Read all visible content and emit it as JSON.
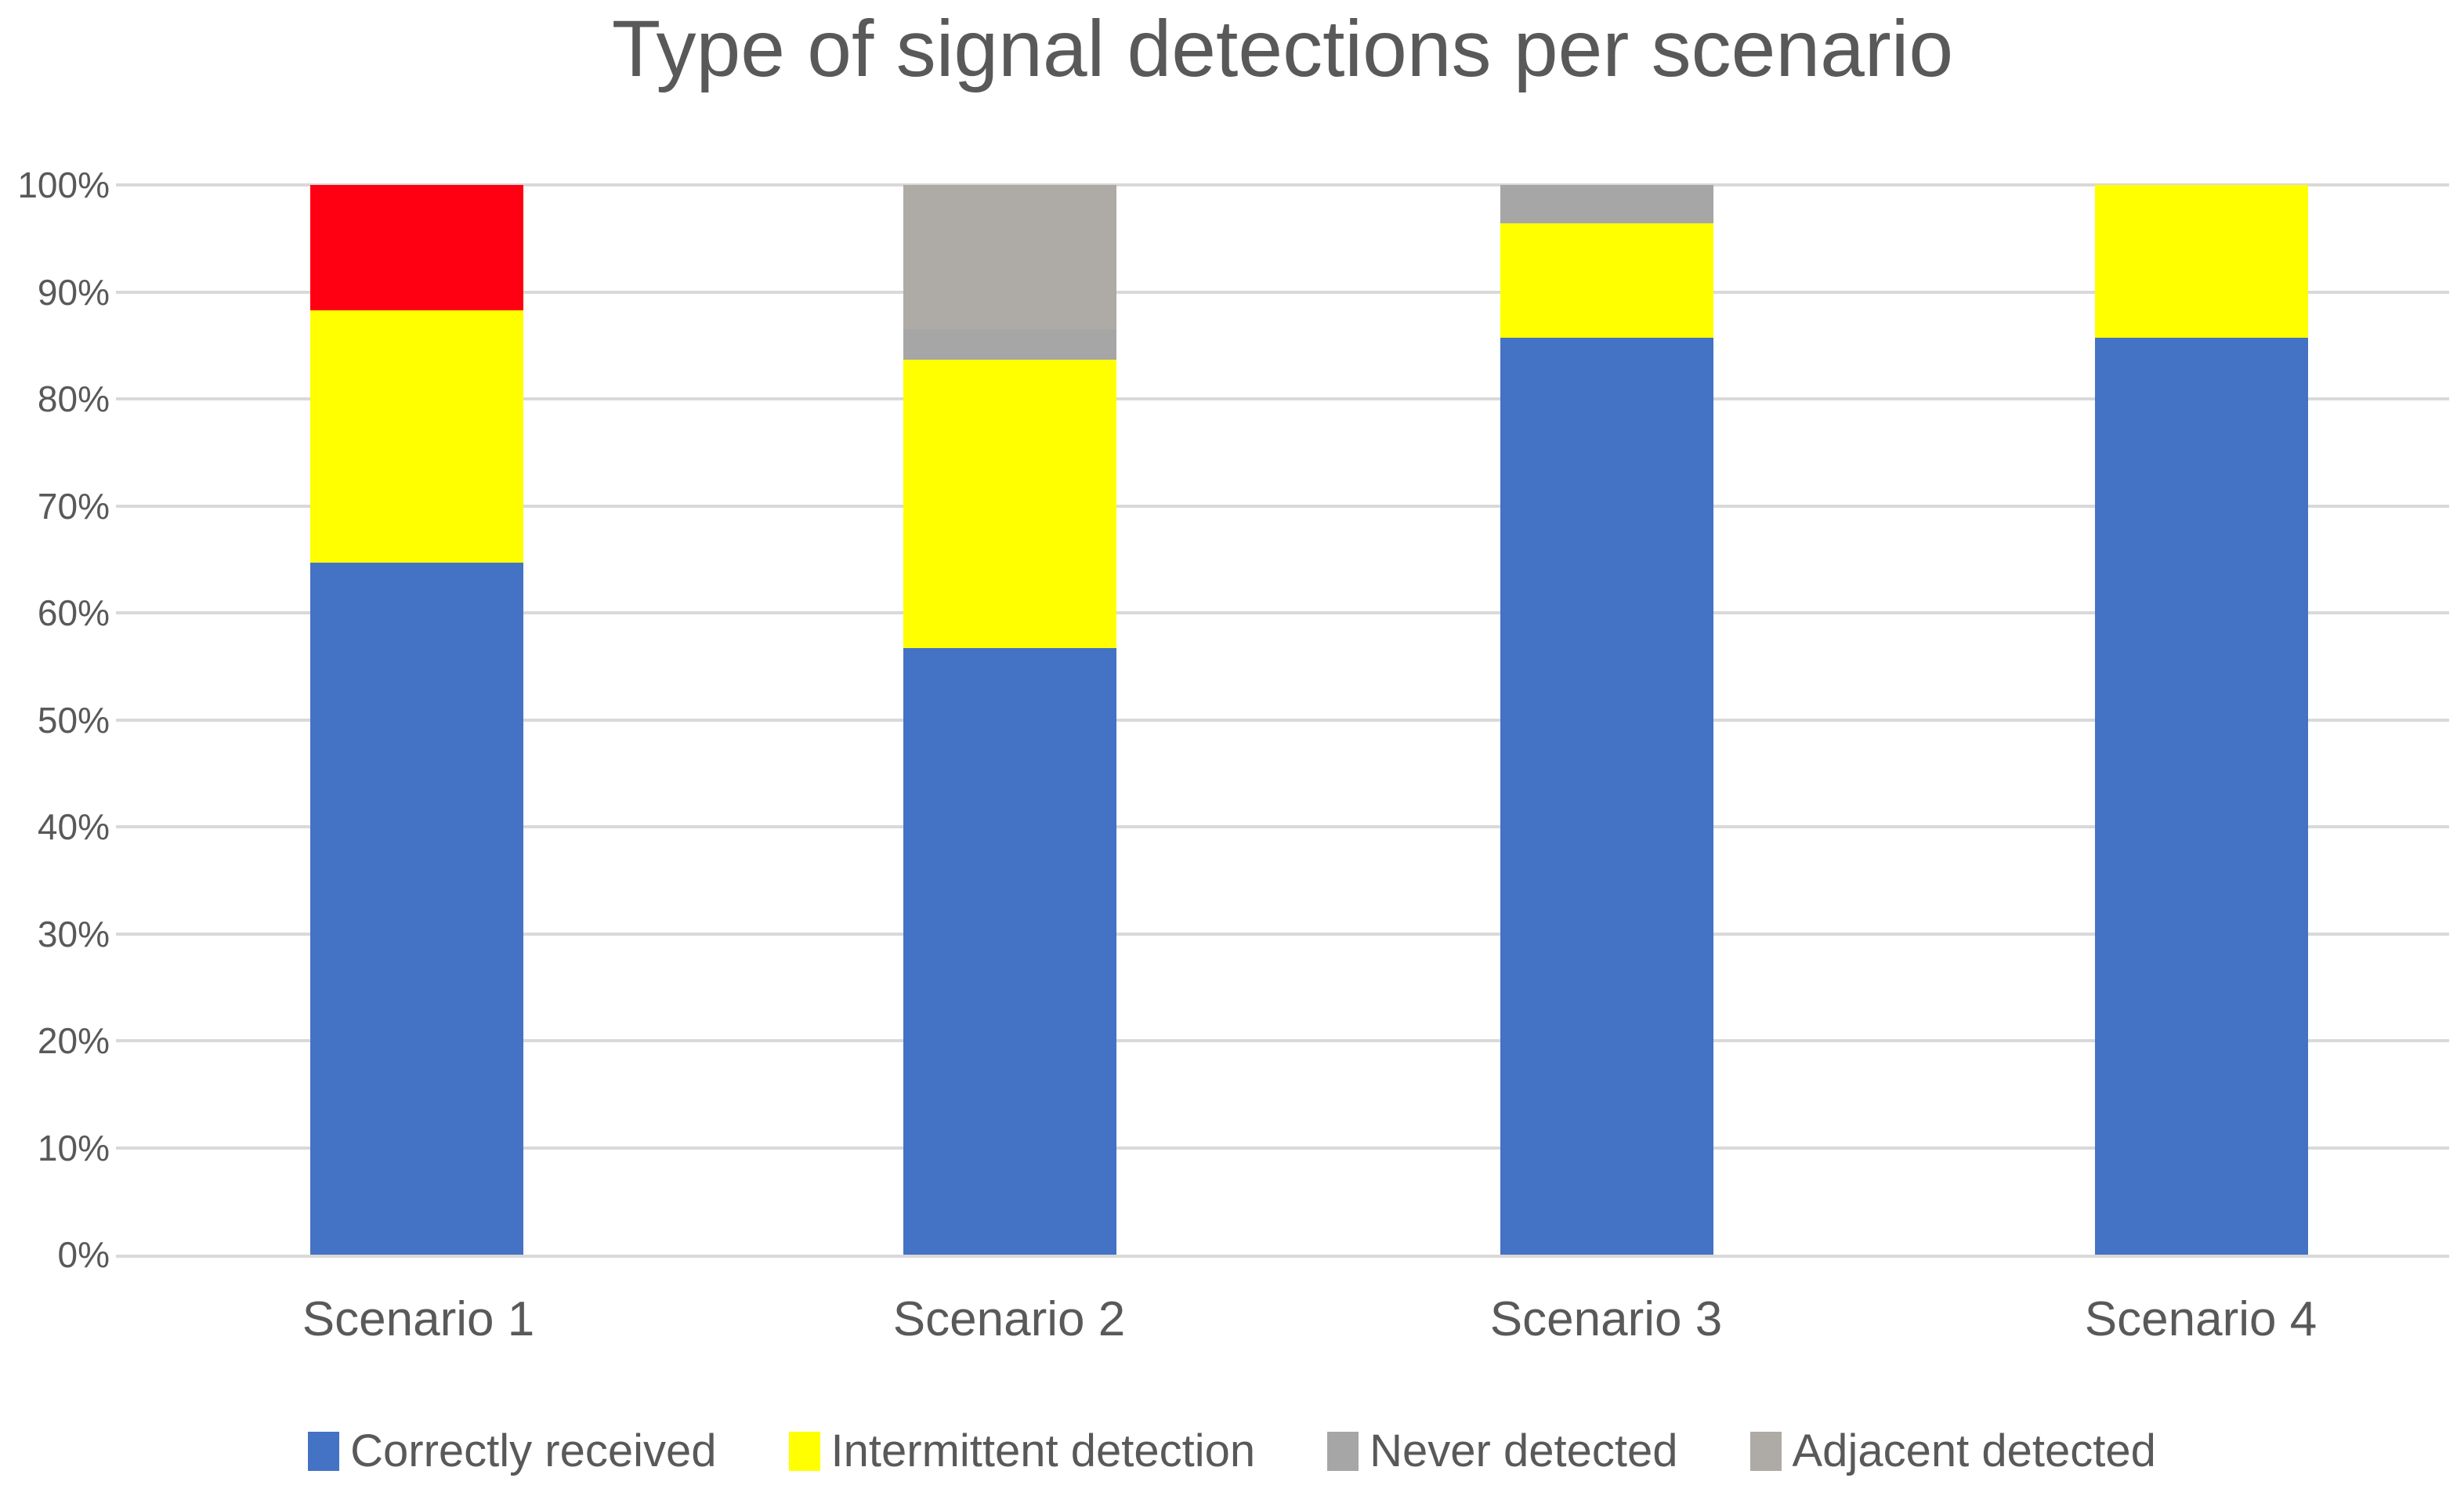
{
  "chart_data": {
    "type": "bar",
    "subtype": "stacked-100-percent-column",
    "title": "Type of signal detections per scenario",
    "categories": [
      "Scenario 1",
      "Scenario 2",
      "Scenario 3",
      "Scenario 4"
    ],
    "series": [
      {
        "name": "Correctly received",
        "color": "#4472C4",
        "in_legend": true,
        "values": [
          64.7,
          56.7,
          85.7,
          85.7
        ]
      },
      {
        "name": "Intermittent detection",
        "color": "#FFFF00",
        "in_legend": true,
        "values": [
          23.6,
          27.0,
          10.7,
          14.3
        ]
      },
      {
        "name": "Never detected",
        "color": "#A6A6A6",
        "in_legend": true,
        "values": [
          0,
          2.8,
          3.6,
          0
        ]
      },
      {
        "name": "Adjacent detected",
        "color": "#AEAAA6",
        "in_legend": true,
        "values": [
          0,
          13.5,
          0,
          0
        ]
      },
      {
        "name": "",
        "color": "#FF0013",
        "in_legend": false,
        "values": [
          11.7,
          0,
          0,
          0
        ]
      }
    ],
    "y_axis": {
      "min": 0,
      "max": 100,
      "step": 10,
      "tick_labels": [
        "0%",
        "10%",
        "20%",
        "30%",
        "40%",
        "50%",
        "60%",
        "70%",
        "80%",
        "90%",
        "100%"
      ]
    },
    "x_axis": {
      "tick_labels": [
        "Scenario 1",
        "Scenario 2",
        "Scenario 3",
        "Scenario 4"
      ]
    },
    "grid": {
      "horizontal": true,
      "vertical": false,
      "color": "#D9D9D9"
    },
    "legend": {
      "position": "bottom",
      "items": [
        "Correctly received",
        "Intermittent detection",
        "Never detected",
        "Adjacent detected"
      ]
    },
    "text_color": "#595959",
    "background": "#FFFFFF"
  }
}
